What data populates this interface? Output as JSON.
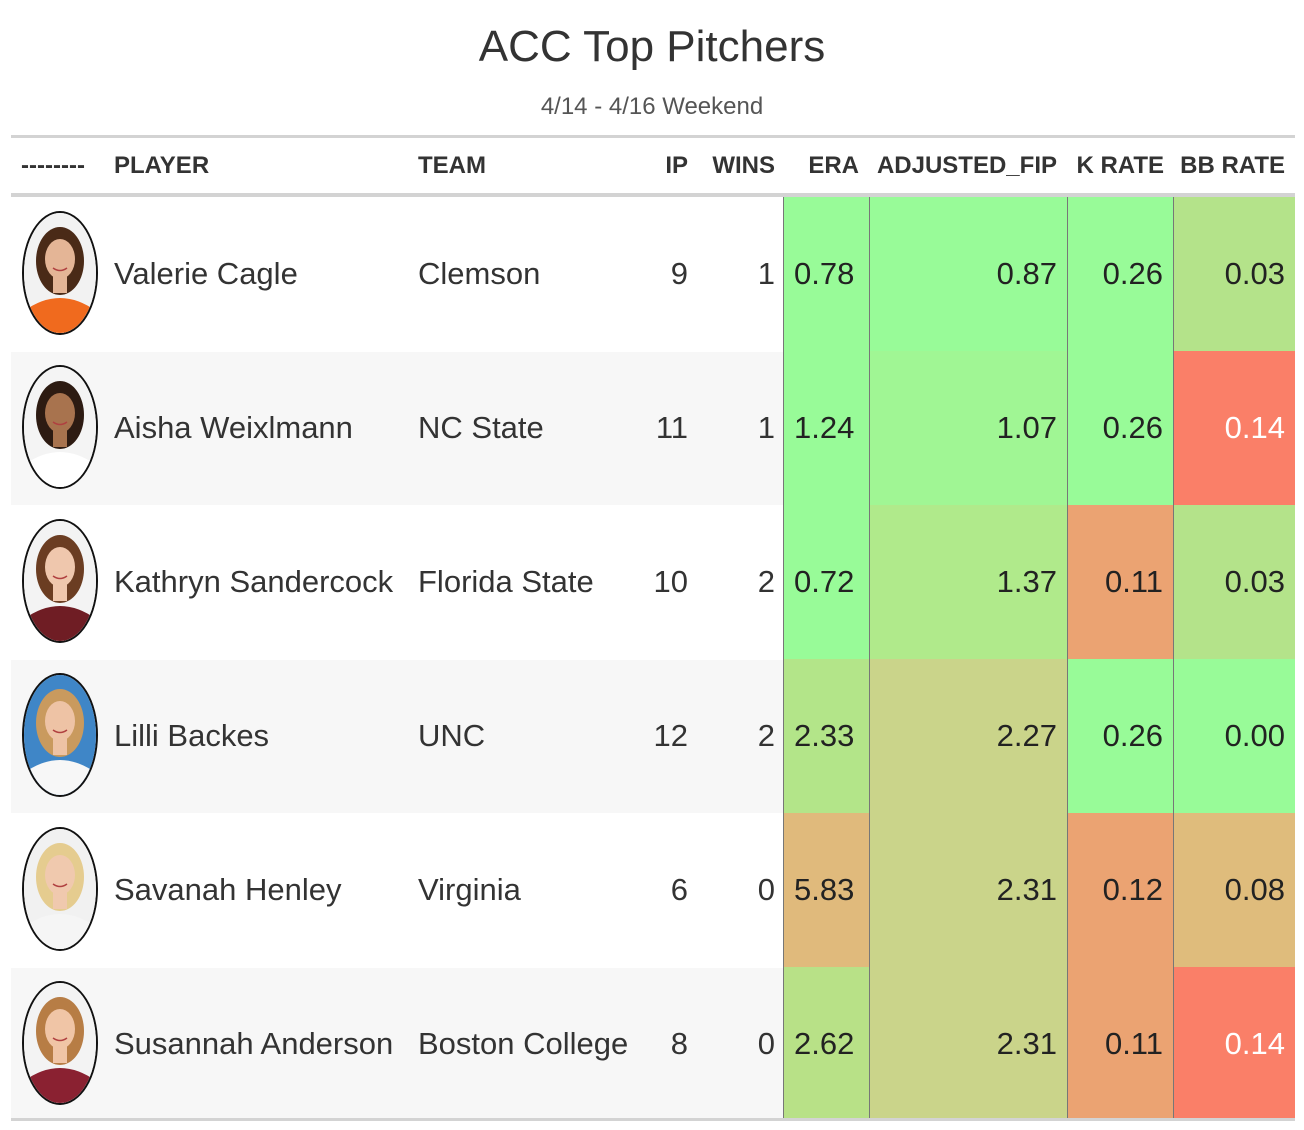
{
  "title": "ACC Top Pitchers",
  "subtitle": "4/14 - 4/16 Weekend",
  "columns": {
    "photo": "--------",
    "player": "PLAYER",
    "team": "TEAM",
    "ip": "IP",
    "wins": "WINS",
    "era": "ERA",
    "adjusted_fip": "ADJUSTED_FIP",
    "k_rate": "K RATE",
    "bb_rate": "BB RATE"
  },
  "colors": {
    "best": "#98fb98",
    "good": "#b4e888",
    "mid": "#cad48a",
    "poor": "#e0ba7c",
    "bad": "#eba372",
    "worst": "#f97e68"
  },
  "chart_data": {
    "type": "table",
    "title": "ACC Top Pitchers",
    "subtitle": "4/14 - 4/16 Weekend",
    "headers": [
      "--------",
      "PLAYER",
      "TEAM",
      "IP",
      "WINS",
      "ERA",
      "ADJUSTED_FIP",
      "K RATE",
      "BB RATE"
    ],
    "rows": [
      {
        "player": "Valerie Cagle",
        "team": "Clemson",
        "ip": "9",
        "wins": "1",
        "era": "0.78",
        "adjusted_fip": "0.87",
        "k_rate": "0.26",
        "bb_rate": "0.03",
        "photo_icon": "player-photo-orange-jersey",
        "era_color": "#98fb98",
        "fip_color": "#98fb98",
        "k_color": "#98fb98",
        "bb_color": "#b4e38a",
        "bb_text_color": "#222222"
      },
      {
        "player": "Aisha Weixlmann",
        "team": "NC State",
        "ip": "11",
        "wins": "1",
        "era": "1.24",
        "adjusted_fip": "1.07",
        "k_rate": "0.26",
        "bb_rate": "0.14",
        "photo_icon": "player-photo-white-jersey",
        "era_color": "#98fb98",
        "fip_color": "#a0f694",
        "k_color": "#98fb98",
        "bb_color": "#fa7f68",
        "bb_text_color": "#ffffff"
      },
      {
        "player": "Kathryn Sandercock",
        "team": "Florida State",
        "ip": "10",
        "wins": "2",
        "era": "0.72",
        "adjusted_fip": "1.37",
        "k_rate": "0.11",
        "bb_rate": "0.03",
        "photo_icon": "player-photo-garnet-jersey",
        "era_color": "#98fb98",
        "fip_color": "#b0ea8b",
        "k_color": "#eba372",
        "bb_color": "#b4e38a",
        "bb_text_color": "#222222"
      },
      {
        "player": "Lilli Backes",
        "team": "UNC",
        "ip": "12",
        "wins": "2",
        "era": "2.33",
        "adjusted_fip": "2.27",
        "k_rate": "0.26",
        "bb_rate": "0.00",
        "photo_icon": "player-photo-blue-background",
        "era_color": "#b3e589",
        "fip_color": "#cad48a",
        "k_color": "#98fb98",
        "bb_color": "#98fb98",
        "bb_text_color": "#222222"
      },
      {
        "player": "Savanah Henley",
        "team": "Virginia",
        "ip": "6",
        "wins": "0",
        "era": "5.83",
        "adjusted_fip": "2.31",
        "k_rate": "0.12",
        "bb_rate": "0.08",
        "photo_icon": "player-photo-blonde",
        "era_color": "#e0ba7c",
        "fip_color": "#cad48a",
        "k_color": "#eba372",
        "bb_color": "#dfbc7c",
        "bb_text_color": "#222222"
      },
      {
        "player": "Susannah Anderson",
        "team": "Boston College",
        "ip": "8",
        "wins": "0",
        "era": "2.62",
        "adjusted_fip": "2.31",
        "k_rate": "0.11",
        "bb_rate": "0.14",
        "photo_icon": "player-photo-maroon-jersey",
        "era_color": "#b8e187",
        "fip_color": "#cad48a",
        "k_color": "#eba372",
        "bb_color": "#fa7f68",
        "bb_text_color": "#ffffff"
      }
    ]
  }
}
